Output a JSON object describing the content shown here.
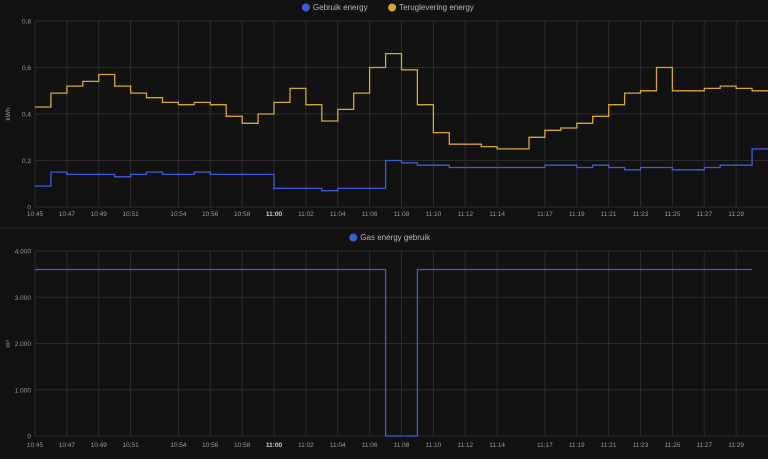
{
  "chart_data": [
    {
      "type": "line",
      "step": true,
      "ylabel": "kWh",
      "ylim": [
        0,
        0.8
      ],
      "y_ticks": [
        "0",
        "0,2",
        "0,4",
        "0,6",
        "0,8"
      ],
      "x_ticks": [
        "10:45",
        "10:47",
        "10:49",
        "10:51",
        "10:54",
        "10:56",
        "10:58",
        "11:00",
        "11:02",
        "11:04",
        "11:06",
        "11:08",
        "11:10",
        "11:12",
        "11:14",
        "11:17",
        "11:19",
        "11:21",
        "11:23",
        "11:25",
        "11:27",
        "11:29"
      ],
      "bold_tick": "11:00",
      "grid": true,
      "legend_position": "top-center",
      "x": [
        "10:45",
        "10:46",
        "10:47",
        "10:48",
        "10:49",
        "10:50",
        "10:51",
        "10:52",
        "10:53",
        "10:54",
        "10:55",
        "10:56",
        "10:57",
        "10:58",
        "10:59",
        "11:00",
        "11:01",
        "11:02",
        "11:03",
        "11:04",
        "11:05",
        "11:06",
        "11:07",
        "11:08",
        "11:09",
        "11:10",
        "11:11",
        "11:12",
        "11:13",
        "11:14",
        "11:15",
        "11:16",
        "11:17",
        "11:18",
        "11:19",
        "11:20",
        "11:21",
        "11:22",
        "11:23",
        "11:24",
        "11:25",
        "11:26",
        "11:27",
        "11:28",
        "11:29",
        "11:30"
      ],
      "series": [
        {
          "name": "Gebruik energy",
          "color": "#3d5bd6",
          "values": [
            0.09,
            0.15,
            0.14,
            0.14,
            0.14,
            0.13,
            0.14,
            0.15,
            0.14,
            0.14,
            0.15,
            0.14,
            0.14,
            0.14,
            0.14,
            0.08,
            0.08,
            0.08,
            0.07,
            0.08,
            0.08,
            0.08,
            0.2,
            0.19,
            0.18,
            0.18,
            0.17,
            0.17,
            0.17,
            0.17,
            0.17,
            0.17,
            0.18,
            0.18,
            0.17,
            0.18,
            0.17,
            0.16,
            0.17,
            0.17,
            0.16,
            0.16,
            0.17,
            0.18,
            0.18,
            0.25
          ]
        },
        {
          "name": "Teruglevering energy",
          "color": "#d2a738",
          "values": [
            0.43,
            0.49,
            0.52,
            0.54,
            0.57,
            0.52,
            0.49,
            0.47,
            0.45,
            0.44,
            0.45,
            0.44,
            0.39,
            0.36,
            0.4,
            0.45,
            0.51,
            0.44,
            0.37,
            0.42,
            0.49,
            0.6,
            0.66,
            0.59,
            0.44,
            0.32,
            0.27,
            0.27,
            0.26,
            0.25,
            0.25,
            0.3,
            0.33,
            0.34,
            0.36,
            0.39,
            0.44,
            0.49,
            0.5,
            0.6,
            0.5,
            0.5,
            0.51,
            0.52,
            0.51,
            0.5
          ]
        }
      ]
    },
    {
      "type": "line",
      "step": true,
      "ylabel": "m³",
      "ylim": [
        0,
        4000
      ],
      "y_ticks": [
        "0",
        "1.000",
        "2.000",
        "3.000",
        "4.000"
      ],
      "x_ticks": [
        "10:45",
        "10:47",
        "10:49",
        "10:51",
        "10:54",
        "10:56",
        "10:58",
        "11:00",
        "11:02",
        "11:04",
        "11:06",
        "11:08",
        "11:10",
        "11:12",
        "11:14",
        "11:17",
        "11:19",
        "11:21",
        "11:23",
        "11:25",
        "11:27",
        "11:29"
      ],
      "bold_tick": "11:00",
      "grid": true,
      "legend_position": "top-center",
      "x": [
        "10:45",
        "11:07",
        "11:07",
        "11:09",
        "11:09",
        "11:30"
      ],
      "series": [
        {
          "name": "Gas energy gebruik",
          "color": "#3d5bd6",
          "values": [
            3600,
            3600,
            0,
            0,
            3600,
            3600
          ]
        }
      ]
    }
  ]
}
